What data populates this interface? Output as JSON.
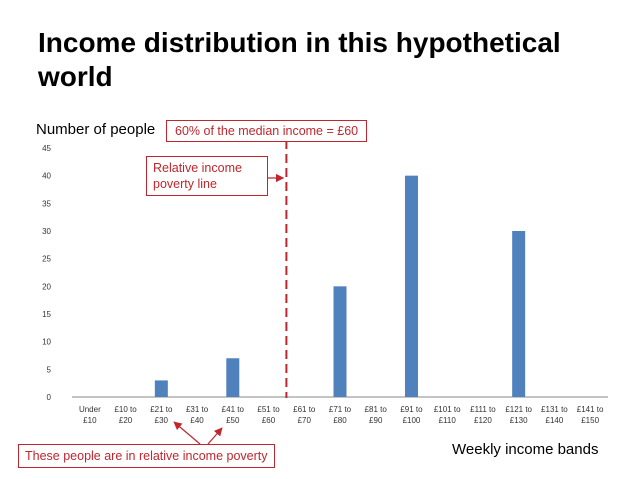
{
  "title": "Income distribution in this hypothetical world",
  "annotations": {
    "median_box": "60% of the median income = £60",
    "poverty_line_label": "Relative income poverty line",
    "poverty_group_label": "These people are in relative income poverty"
  },
  "colors": {
    "bar": "#4f81bd",
    "annotation": "#c0262d"
  },
  "chart_data": {
    "type": "bar",
    "title": "Income distribution in this hypothetical world",
    "xlabel": "Weekly income bands",
    "ylabel": "Number of people",
    "categories": [
      [
        "Under",
        "£10"
      ],
      [
        "£10 to",
        "£20"
      ],
      [
        "£21 to",
        "£30"
      ],
      [
        "£31 to",
        "£40"
      ],
      [
        "£41 to",
        "£50"
      ],
      [
        "£51 to",
        "£60"
      ],
      [
        "£61 to",
        "£70"
      ],
      [
        "£71 to",
        "£80"
      ],
      [
        "£81 to",
        "£90"
      ],
      [
        "£91 to",
        "£100"
      ],
      [
        "£101 to",
        "£110"
      ],
      [
        "£111 to",
        "£120"
      ],
      [
        "£121 to",
        "£130"
      ],
      [
        "£131 to",
        "£140"
      ],
      [
        "£141 to",
        "£150"
      ]
    ],
    "values": [
      0,
      0,
      3,
      0,
      7,
      0,
      0,
      20,
      0,
      40,
      0,
      0,
      30,
      0,
      0
    ],
    "ylim": [
      0,
      45
    ],
    "yticks": [
      0,
      5,
      10,
      15,
      20,
      25,
      30,
      35,
      40,
      45
    ],
    "reference_line": {
      "x": 60,
      "style": "dashed"
    },
    "grid": false,
    "legend": "none"
  }
}
